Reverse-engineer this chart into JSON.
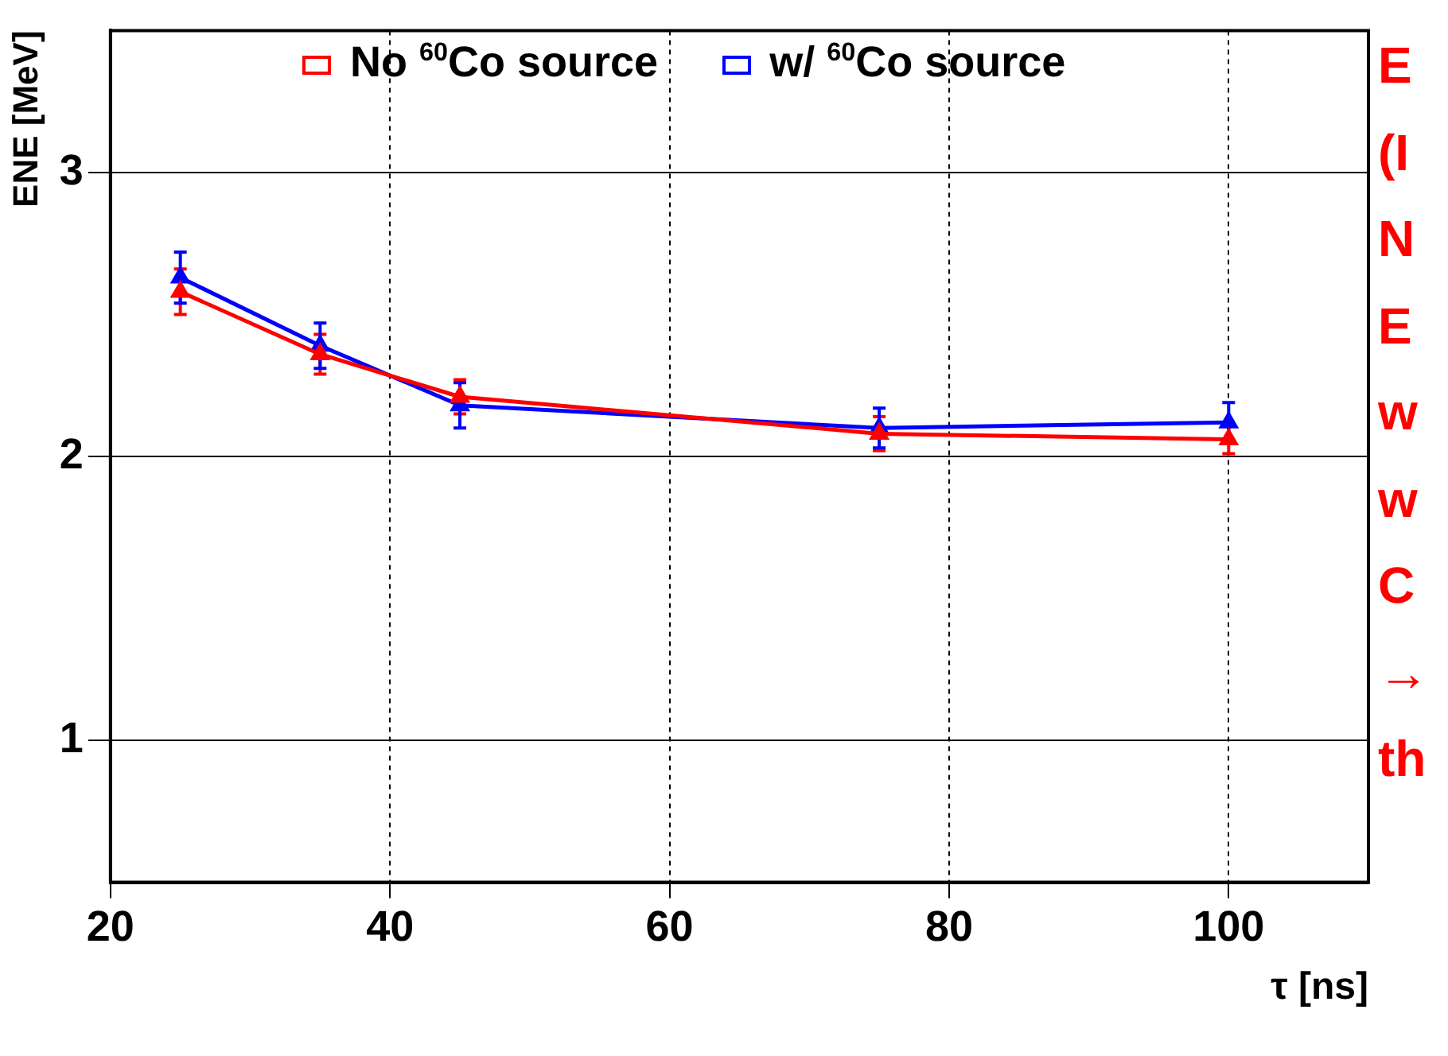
{
  "chart_data": {
    "type": "line",
    "xlabel": "τ [ns]",
    "ylabel": "ENE [MeV]",
    "x": [
      25,
      35,
      45,
      75,
      100
    ],
    "series": [
      {
        "name": "No $^{60}$Co source",
        "color": "#ff0000",
        "values": [
          2.58,
          2.36,
          2.21,
          2.08,
          2.06
        ],
        "errors": [
          0.08,
          0.07,
          0.06,
          0.06,
          0.05
        ]
      },
      {
        "name": "w/ $^{60}$Co source",
        "color": "#0000ff",
        "values": [
          2.63,
          2.39,
          2.18,
          2.1,
          2.12
        ],
        "errors": [
          0.09,
          0.08,
          0.08,
          0.07,
          0.07
        ]
      }
    ],
    "xlim": [
      20,
      110
    ],
    "xticks": [
      20,
      40,
      60,
      80,
      100
    ],
    "ylim": [
      0.5,
      3.5
    ],
    "yticks": [
      1,
      2,
      3
    ],
    "grid": true,
    "legend": "top",
    "marker": "triangle",
    "line_style": "solid",
    "annotations": [
      "E",
      "(I",
      "N",
      "E",
      "w",
      "w",
      "C",
      "→",
      "th"
    ]
  }
}
